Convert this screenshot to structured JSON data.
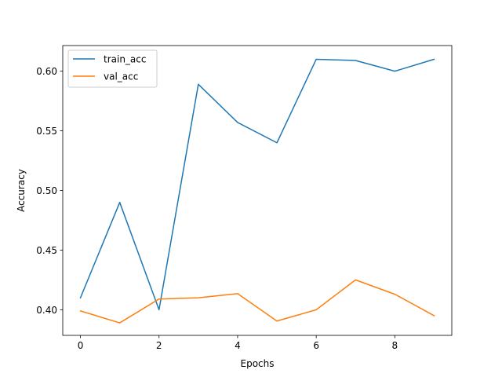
{
  "chart_data": {
    "type": "line",
    "title": "",
    "xlabel": "Epochs",
    "ylabel": "Accuracy",
    "x": [
      0,
      1,
      2,
      3,
      4,
      5,
      6,
      7,
      8,
      9
    ],
    "xlim": [
      -0.45,
      9.45
    ],
    "ylim": [
      0.3785,
      0.6215
    ],
    "xticks": [
      0,
      2,
      4,
      6,
      8
    ],
    "xtick_labels": [
      "0",
      "2",
      "4",
      "6",
      "8"
    ],
    "yticks": [
      0.4,
      0.45,
      0.5,
      0.55,
      0.6
    ],
    "ytick_labels": [
      "0.40",
      "0.45",
      "0.50",
      "0.55",
      "0.60"
    ],
    "grid": false,
    "legend_position": "top-left",
    "series": [
      {
        "name": "train_acc",
        "color": "#1f77b4",
        "values": [
          0.41,
          0.49,
          0.4,
          0.589,
          0.557,
          0.54,
          0.61,
          0.609,
          0.6,
          0.61
        ]
      },
      {
        "name": "val_acc",
        "color": "#ff7f0e",
        "values": [
          0.399,
          0.389,
          0.409,
          0.41,
          0.4135,
          0.3905,
          0.4,
          0.425,
          0.413,
          0.395
        ]
      }
    ]
  }
}
